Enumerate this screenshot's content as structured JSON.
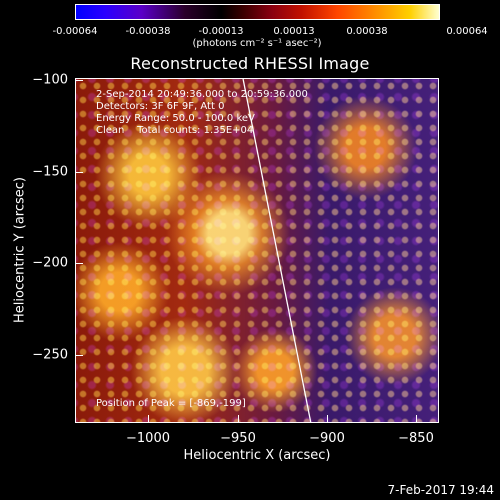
{
  "colorbar": {
    "ticks": [
      "-0.00064",
      "-0.00038",
      "-0.00013",
      "0.00013",
      "0.00038",
      "0.00064"
    ],
    "units": "(photons cm⁻² s⁻¹ asec⁻²)"
  },
  "title": "Reconstructed RHESSI Image",
  "info": {
    "time_range": "2-Sep-2014 20:49:36.000 to 20:59:36.000",
    "detectors": "Detectors: 3F 6F 9F, Att 0",
    "energy_range": "Energy Range: 50.0 - 100.0 keV",
    "method_counts": "Clean    Total counts: 1.35E+04"
  },
  "peak": "Position of Peak = [-869,-199]",
  "axes": {
    "x_ticks": [
      "−1000",
      "−950",
      "−900",
      "−850"
    ],
    "y_ticks": [
      "−100",
      "−150",
      "−200",
      "−250"
    ],
    "xlabel": "Heliocentric X (arcsec)",
    "ylabel": "Heliocentric Y (arcsec)"
  },
  "timestamp": "7-Feb-2017 19:44"
}
